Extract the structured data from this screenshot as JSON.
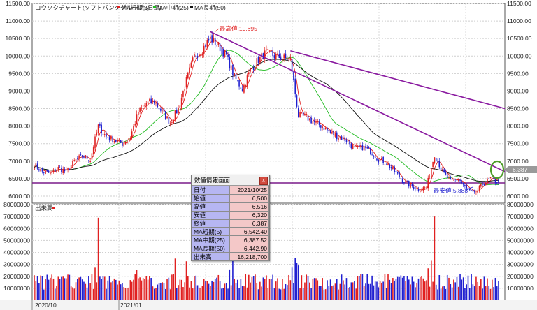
{
  "chart_title": "ロウソクチャート(ソフトバンクグループ)(日足)",
  "legend": [
    {
      "label": "MA短期(5)",
      "color": "#e02020"
    },
    {
      "label": "MA中期(25)",
      "color": "#22bb22"
    },
    {
      "label": "MA長期(50)",
      "color": "#111111"
    }
  ],
  "price_axis": {
    "min": 5800,
    "max": 11500,
    "ticks": [
      6000,
      6500,
      7000,
      7500,
      8000,
      8500,
      9000,
      9500,
      10000,
      10500,
      11000,
      11500
    ],
    "tick_labels": [
      "6000.00",
      "6500.00",
      "7000.00",
      "7500.00",
      "8000.00",
      "8500.00",
      "9000.00",
      "9500.00",
      "10000.00",
      "10500.00",
      "11000.00",
      "11500.00"
    ]
  },
  "volume_panel": {
    "label": "出来高",
    "axis": {
      "min": 0,
      "max": 80000000,
      "ticks": [
        10000000,
        20000000,
        30000000,
        40000000,
        50000000,
        60000000,
        70000000,
        80000000
      ],
      "tick_labels": [
        "10000000",
        "20000000",
        "30000000",
        "40000000",
        "50000000",
        "60000000",
        "70000000",
        "80000000"
      ]
    }
  },
  "x_labels": [
    "2020/10",
    "2021/01"
  ],
  "current_price_label": "6,387",
  "annotations": {
    "high": "最高値:10,695",
    "low": "最安値:5,888"
  },
  "colors": {
    "up": "#e02020",
    "down": "#2020d0",
    "trend": "#8a1aa0",
    "support": "#7a1a8a",
    "circle": "#4f9d2a",
    "vol_up": "#e02020",
    "vol_down": "#2020d0"
  },
  "info_panel": {
    "title": "数値情報画面",
    "close": "x",
    "rows": [
      {
        "k": "日付",
        "v": "2021/10/25"
      },
      {
        "k": "始値",
        "v": "6,500"
      },
      {
        "k": "高値",
        "v": "6,516"
      },
      {
        "k": "安値",
        "v": "6,320"
      },
      {
        "k": "終値",
        "v": "6,387"
      },
      {
        "k": "MA短期(5)",
        "v": "6,542.40"
      },
      {
        "k": "MA中期(25)",
        "v": "6,387.52"
      },
      {
        "k": "MA長期(50)",
        "v": "6,442.90"
      },
      {
        "k": "出来高",
        "v": "16,218,700"
      }
    ]
  },
  "chart_data": {
    "type": "line",
    "title": "ロウソクチャート(ソフトバンクグループ)(日足)",
    "ylabel": "",
    "ylim": [
      5800,
      11500
    ],
    "price_path": [
      {
        "d": 0,
        "p": 6900
      },
      {
        "d": 5,
        "p": 6700
      },
      {
        "d": 10,
        "p": 6650
      },
      {
        "d": 15,
        "p": 6800
      },
      {
        "d": 20,
        "p": 6700
      },
      {
        "d": 25,
        "p": 7000
      },
      {
        "d": 30,
        "p": 7150
      },
      {
        "d": 35,
        "p": 7050
      },
      {
        "d": 40,
        "p": 8000
      },
      {
        "d": 45,
        "p": 7700
      },
      {
        "d": 50,
        "p": 7600
      },
      {
        "d": 55,
        "p": 7500
      },
      {
        "d": 60,
        "p": 7700
      },
      {
        "d": 65,
        "p": 8400
      },
      {
        "d": 70,
        "p": 8650
      },
      {
        "d": 75,
        "p": 8700
      },
      {
        "d": 80,
        "p": 8400
      },
      {
        "d": 85,
        "p": 8100
      },
      {
        "d": 90,
        "p": 8500
      },
      {
        "d": 95,
        "p": 9300
      },
      {
        "d": 100,
        "p": 10000
      },
      {
        "d": 105,
        "p": 10200
      },
      {
        "d": 110,
        "p": 10500
      },
      {
        "d": 115,
        "p": 10300
      },
      {
        "d": 120,
        "p": 10000
      },
      {
        "d": 125,
        "p": 9400
      },
      {
        "d": 130,
        "p": 9050
      },
      {
        "d": 135,
        "p": 9600
      },
      {
        "d": 140,
        "p": 9900
      },
      {
        "d": 145,
        "p": 10100
      },
      {
        "d": 150,
        "p": 10000
      },
      {
        "d": 155,
        "p": 9950
      },
      {
        "d": 160,
        "p": 9900
      },
      {
        "d": 165,
        "p": 8300
      },
      {
        "d": 170,
        "p": 8250
      },
      {
        "d": 175,
        "p": 8100
      },
      {
        "d": 180,
        "p": 8000
      },
      {
        "d": 185,
        "p": 7800
      },
      {
        "d": 190,
        "p": 7700
      },
      {
        "d": 195,
        "p": 7600
      },
      {
        "d": 200,
        "p": 7350
      },
      {
        "d": 205,
        "p": 7400
      },
      {
        "d": 210,
        "p": 7300
      },
      {
        "d": 215,
        "p": 7050
      },
      {
        "d": 220,
        "p": 6950
      },
      {
        "d": 225,
        "p": 6700
      },
      {
        "d": 230,
        "p": 6450
      },
      {
        "d": 235,
        "p": 6300
      },
      {
        "d": 240,
        "p": 6200
      },
      {
        "d": 245,
        "p": 6250
      },
      {
        "d": 250,
        "p": 7200
      },
      {
        "d": 255,
        "p": 6700
      },
      {
        "d": 260,
        "p": 6400
      },
      {
        "d": 265,
        "p": 6500
      },
      {
        "d": 270,
        "p": 6200
      },
      {
        "d": 275,
        "p": 6050
      },
      {
        "d": 280,
        "p": 6350
      },
      {
        "d": 285,
        "p": 6500
      },
      {
        "d": 290,
        "p": 6387
      }
    ],
    "trendlines": [
      {
        "from": {
          "d": 110,
          "p": 10695
        },
        "to": {
          "d": 294,
          "p": 6700
        }
      },
      {
        "from": {
          "d": 160,
          "p": 10150
        },
        "to": {
          "d": 294,
          "p": 8500
        }
      }
    ],
    "support_level": 6000,
    "high": {
      "d": 110,
      "p": 10695
    },
    "low": {
      "d": 279,
      "p": 5888
    }
  }
}
